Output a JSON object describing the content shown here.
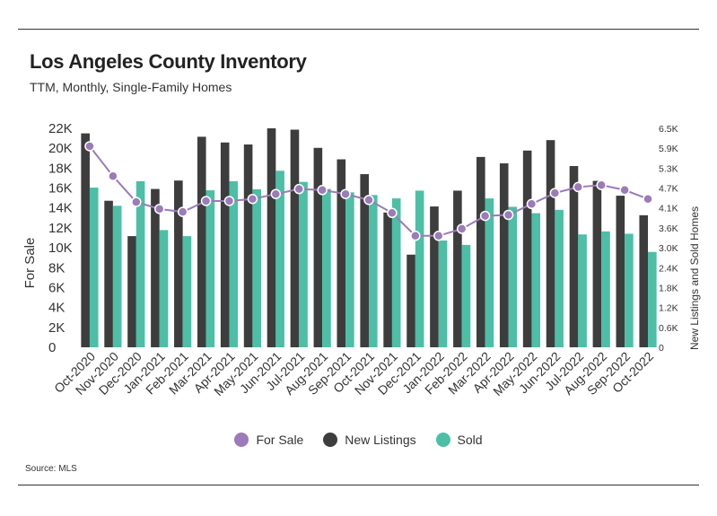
{
  "title": "Los Angeles County Inventory",
  "subtitle": "TTM, Monthly, Single-Family Homes",
  "source": "Source: MLS",
  "colors": {
    "for_sale": "#9b7bb8",
    "new_listings": "#3d3d3d",
    "sold": "#4cbfa6"
  },
  "legend": {
    "for_sale": "For Sale",
    "new_listings": "New Listings",
    "sold": "Sold"
  },
  "chart_data": {
    "type": "bar",
    "title": "Los Angeles County Inventory",
    "subtitle": "TTM, Monthly, Single-Family Homes",
    "categories": [
      "Oct-2020",
      "Nov-2020",
      "Dec-2020",
      "Jan-2021",
      "Feb-2021",
      "Mar-2021",
      "Apr-2021",
      "May-2021",
      "Jun-2021",
      "Jul-2021",
      "Aug-2021",
      "Sep-2021",
      "Oct-2021",
      "Nov-2021",
      "Dec-2021",
      "Jan-2022",
      "Feb-2022",
      "Mar-2022",
      "Apr-2022",
      "May-2022",
      "Jun-2022",
      "Jul-2022",
      "Aug-2022",
      "Sep-2022",
      "Oct-2022"
    ],
    "left_axis": {
      "label": "For Sale",
      "min": 0,
      "max": 22000,
      "ticks": [
        "0",
        "2K",
        "4K",
        "6K",
        "8K",
        "10K",
        "12K",
        "14K",
        "16K",
        "18K",
        "20K",
        "22K"
      ]
    },
    "right_axis": {
      "label": "New Listings and Sold Homes",
      "min": 0,
      "max": 6500,
      "ticks": [
        "0",
        "0.6K",
        "1.2K",
        "1.8K",
        "2.4K",
        "3.0K",
        "3.6K",
        "4.1K",
        "4.7K",
        "5.3K",
        "5.9K",
        "6.5K"
      ]
    },
    "series": [
      {
        "name": "For Sale",
        "type": "line",
        "axis": "left",
        "values": [
          20200,
          17200,
          14600,
          13900,
          13600,
          14700,
          14700,
          14900,
          15400,
          15900,
          15800,
          15400,
          14800,
          13500,
          11200,
          11200,
          11900,
          13200,
          13300,
          14400,
          15500,
          16100,
          16300,
          15800,
          14900
        ]
      },
      {
        "name": "New Listings",
        "type": "bar",
        "axis": "right",
        "values": [
          6350,
          4350,
          3300,
          4700,
          4950,
          6250,
          6080,
          6020,
          6500,
          6460,
          5920,
          5580,
          5140,
          4000,
          2750,
          4180,
          4650,
          5650,
          5460,
          5840,
          6150,
          5380,
          4940,
          4500,
          3920
        ]
      },
      {
        "name": "Sold",
        "type": "bar",
        "axis": "right",
        "values": [
          4740,
          4200,
          4930,
          3480,
          3300,
          4660,
          4930,
          4690,
          5240,
          4910,
          4700,
          4600,
          4520,
          4420,
          4650,
          3170,
          3040,
          4420,
          4170,
          3980,
          4080,
          3350,
          3440,
          3370,
          2830
        ]
      }
    ]
  }
}
